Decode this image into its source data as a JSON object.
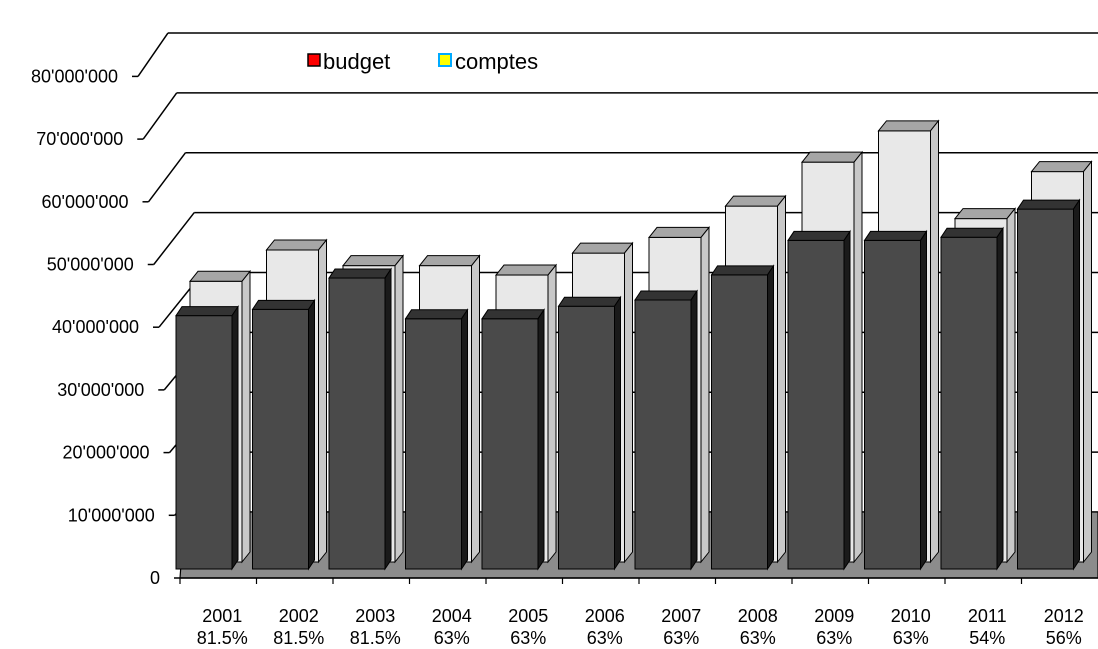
{
  "chart_data": {
    "type": "bar",
    "style": "3d-clustered-depth",
    "title": "",
    "xlabel": "",
    "ylabel": "",
    "ylim": [
      0,
      80000000
    ],
    "yticks": [
      "0",
      "10'000'000",
      "20'000'000",
      "30'000'000",
      "40'000'000",
      "50'000'000",
      "60'000'000",
      "70'000'000",
      "80'000'000"
    ],
    "ytick_values": [
      0,
      10000000,
      20000000,
      30000000,
      40000000,
      50000000,
      60000000,
      70000000,
      80000000
    ],
    "grid": true,
    "legend_position": "top-left",
    "categories": [
      "2001",
      "2002",
      "2003",
      "2004",
      "2005",
      "2006",
      "2007",
      "2008",
      "2009",
      "2010",
      "2011",
      "2012"
    ],
    "category_sublabels": [
      "81.5%",
      "81.5%",
      "81.5%",
      "63%",
      "63%",
      "63%",
      "63%",
      "63%",
      "63%",
      "63%",
      "54%",
      "56%"
    ],
    "series": [
      {
        "name": "budget",
        "legend_color": "#ff0000",
        "bar_color": "#4a4a4a",
        "values": [
          42000000,
          43000000,
          48000000,
          41500000,
          41500000,
          43500000,
          44500000,
          48500000,
          54000000,
          54000000,
          54500000,
          59000000
        ]
      },
      {
        "name": "comptes",
        "legend_color": "#ffff00",
        "bar_color": "#e8e8e8",
        "values": [
          47000000,
          52000000,
          49500000,
          49500000,
          48000000,
          51500000,
          54000000,
          59000000,
          66000000,
          71000000,
          57000000,
          64500000
        ]
      }
    ]
  }
}
